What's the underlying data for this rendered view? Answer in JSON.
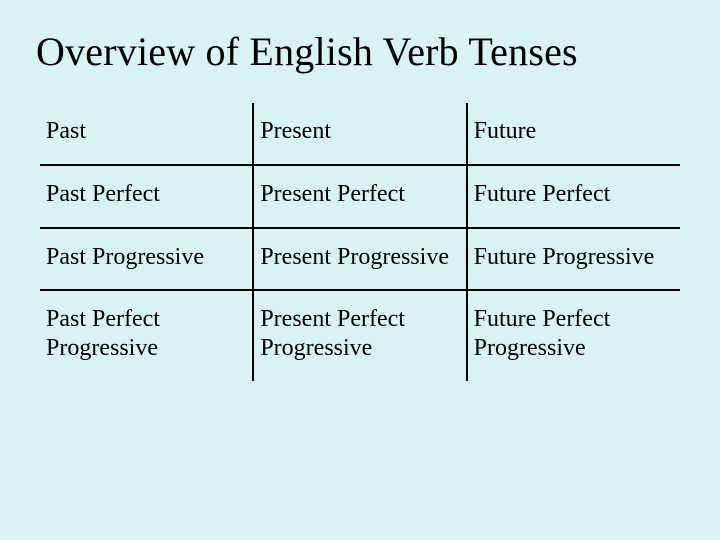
{
  "title": "Overview of English Verb Tenses",
  "table": {
    "type": "table",
    "columns": 3,
    "rows": [
      [
        "Past",
        "Present",
        "Future"
      ],
      [
        "Past Perfect",
        "Present Perfect",
        "Future Perfect"
      ],
      [
        "Past Progressive",
        "Present Progressive",
        "Future Progressive"
      ],
      [
        "Past Perfect Progressive",
        "Present Perfect Progressive",
        "Future Perfect Progressive"
      ]
    ],
    "cell_fontsize": 24,
    "title_fontsize": 40,
    "font_family": "Times New Roman",
    "text_color": "#000000",
    "border_color": "#000000",
    "border_width": 2,
    "background_color": "#d9f3f3",
    "col_divider_after": [
      0,
      1
    ],
    "row_divider_after": [
      0,
      1,
      2
    ]
  }
}
